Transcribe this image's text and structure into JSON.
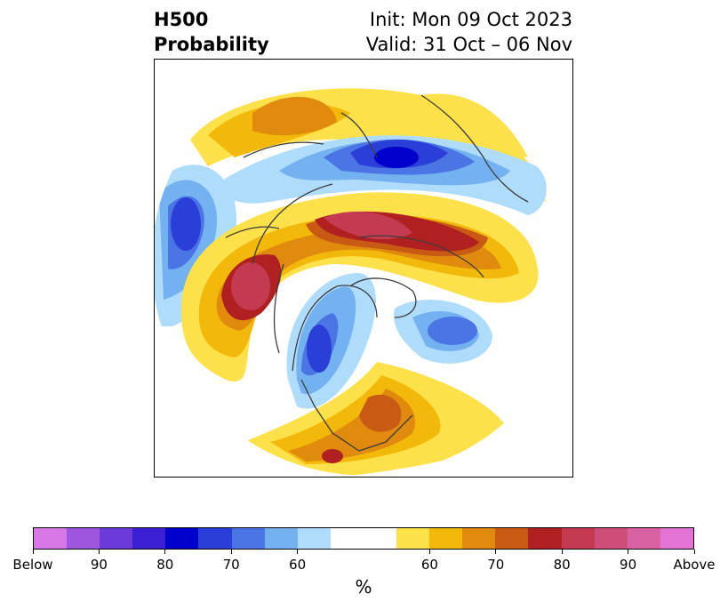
{
  "header": {
    "title_line1": "H500",
    "title_line2": "Probability",
    "init": "Init: Mon 09 Oct 2023",
    "valid": "Valid: 31 Oct – 06 Nov"
  },
  "colorbar": {
    "colors": [
      "#d678e6",
      "#9e55e0",
      "#6c3ad8",
      "#3b1fd4",
      "#0000cc",
      "#2a3fd8",
      "#4b74e4",
      "#73b1f0",
      "#aedcfa",
      "#ffffff",
      "#ffffff",
      "#fce14a",
      "#f3b90a",
      "#e08a0e",
      "#c85a14",
      "#b02020",
      "#c43a50",
      "#cd4e79",
      "#d962a4",
      "#e473d6"
    ],
    "ticks": [
      "Below",
      "90",
      "80",
      "70",
      "60",
      "60",
      "70",
      "80",
      "90",
      "Above"
    ],
    "label": "%"
  },
  "map": {
    "colors": {
      "above_60": "#fce14a",
      "above_65": "#f3b90a",
      "above_70": "#e08a0e",
      "above_75": "#c85a14",
      "above_80": "#b02020",
      "above_85": "#c43a50",
      "above_90": "#cd4e79",
      "below_60": "#aedcfa",
      "below_65": "#73b1f0",
      "below_70": "#4b74e4",
      "below_75": "#2a3fd8",
      "below_80": "#0000cc",
      "coast": "#3d3d3d"
    }
  }
}
